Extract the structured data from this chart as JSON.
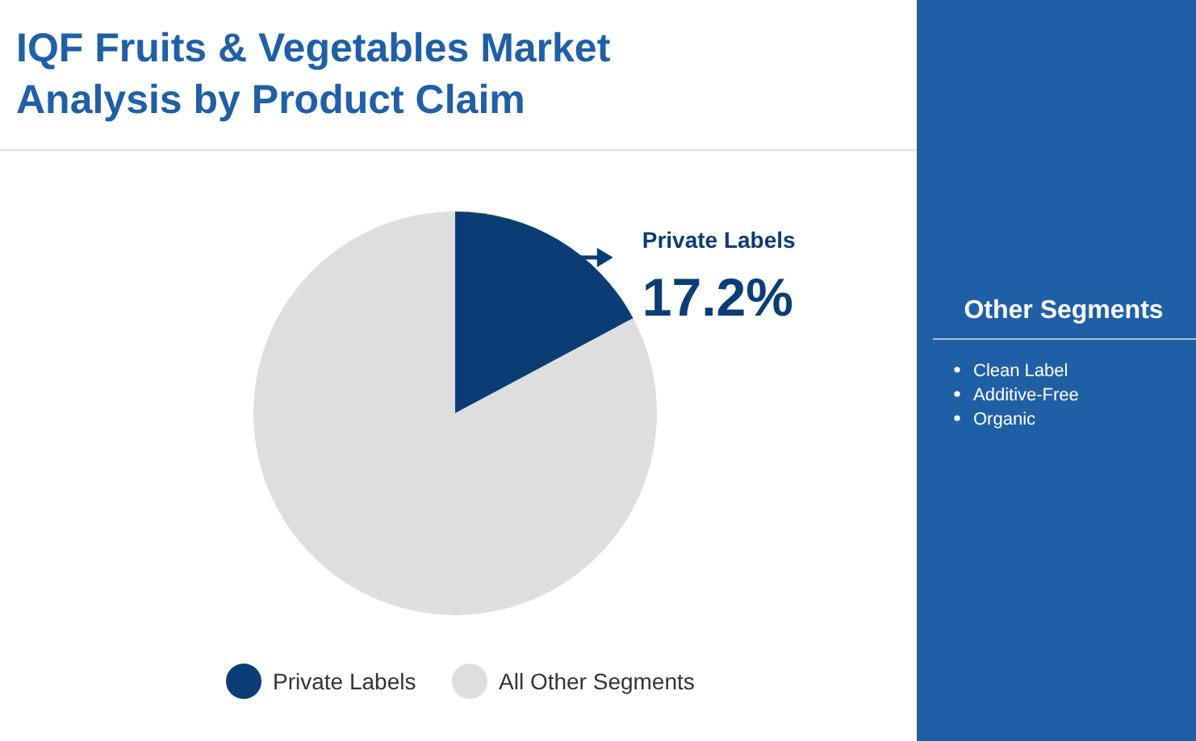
{
  "chart_data": {
    "type": "pie",
    "title": "IQF Fruits & Vegetables Market Analysis by Product Claim",
    "categories": [
      "Private Labels",
      "All Other Segments"
    ],
    "values": [
      17.2,
      82.8
    ],
    "colors": [
      "#0b3d75",
      "#dedede"
    ],
    "value_labels": [
      "17.2%",
      null
    ],
    "legend": "bottom",
    "annotations": [
      "Other Segments",
      "Clean Label",
      "Additive-Free",
      "Organic"
    ]
  }
}
